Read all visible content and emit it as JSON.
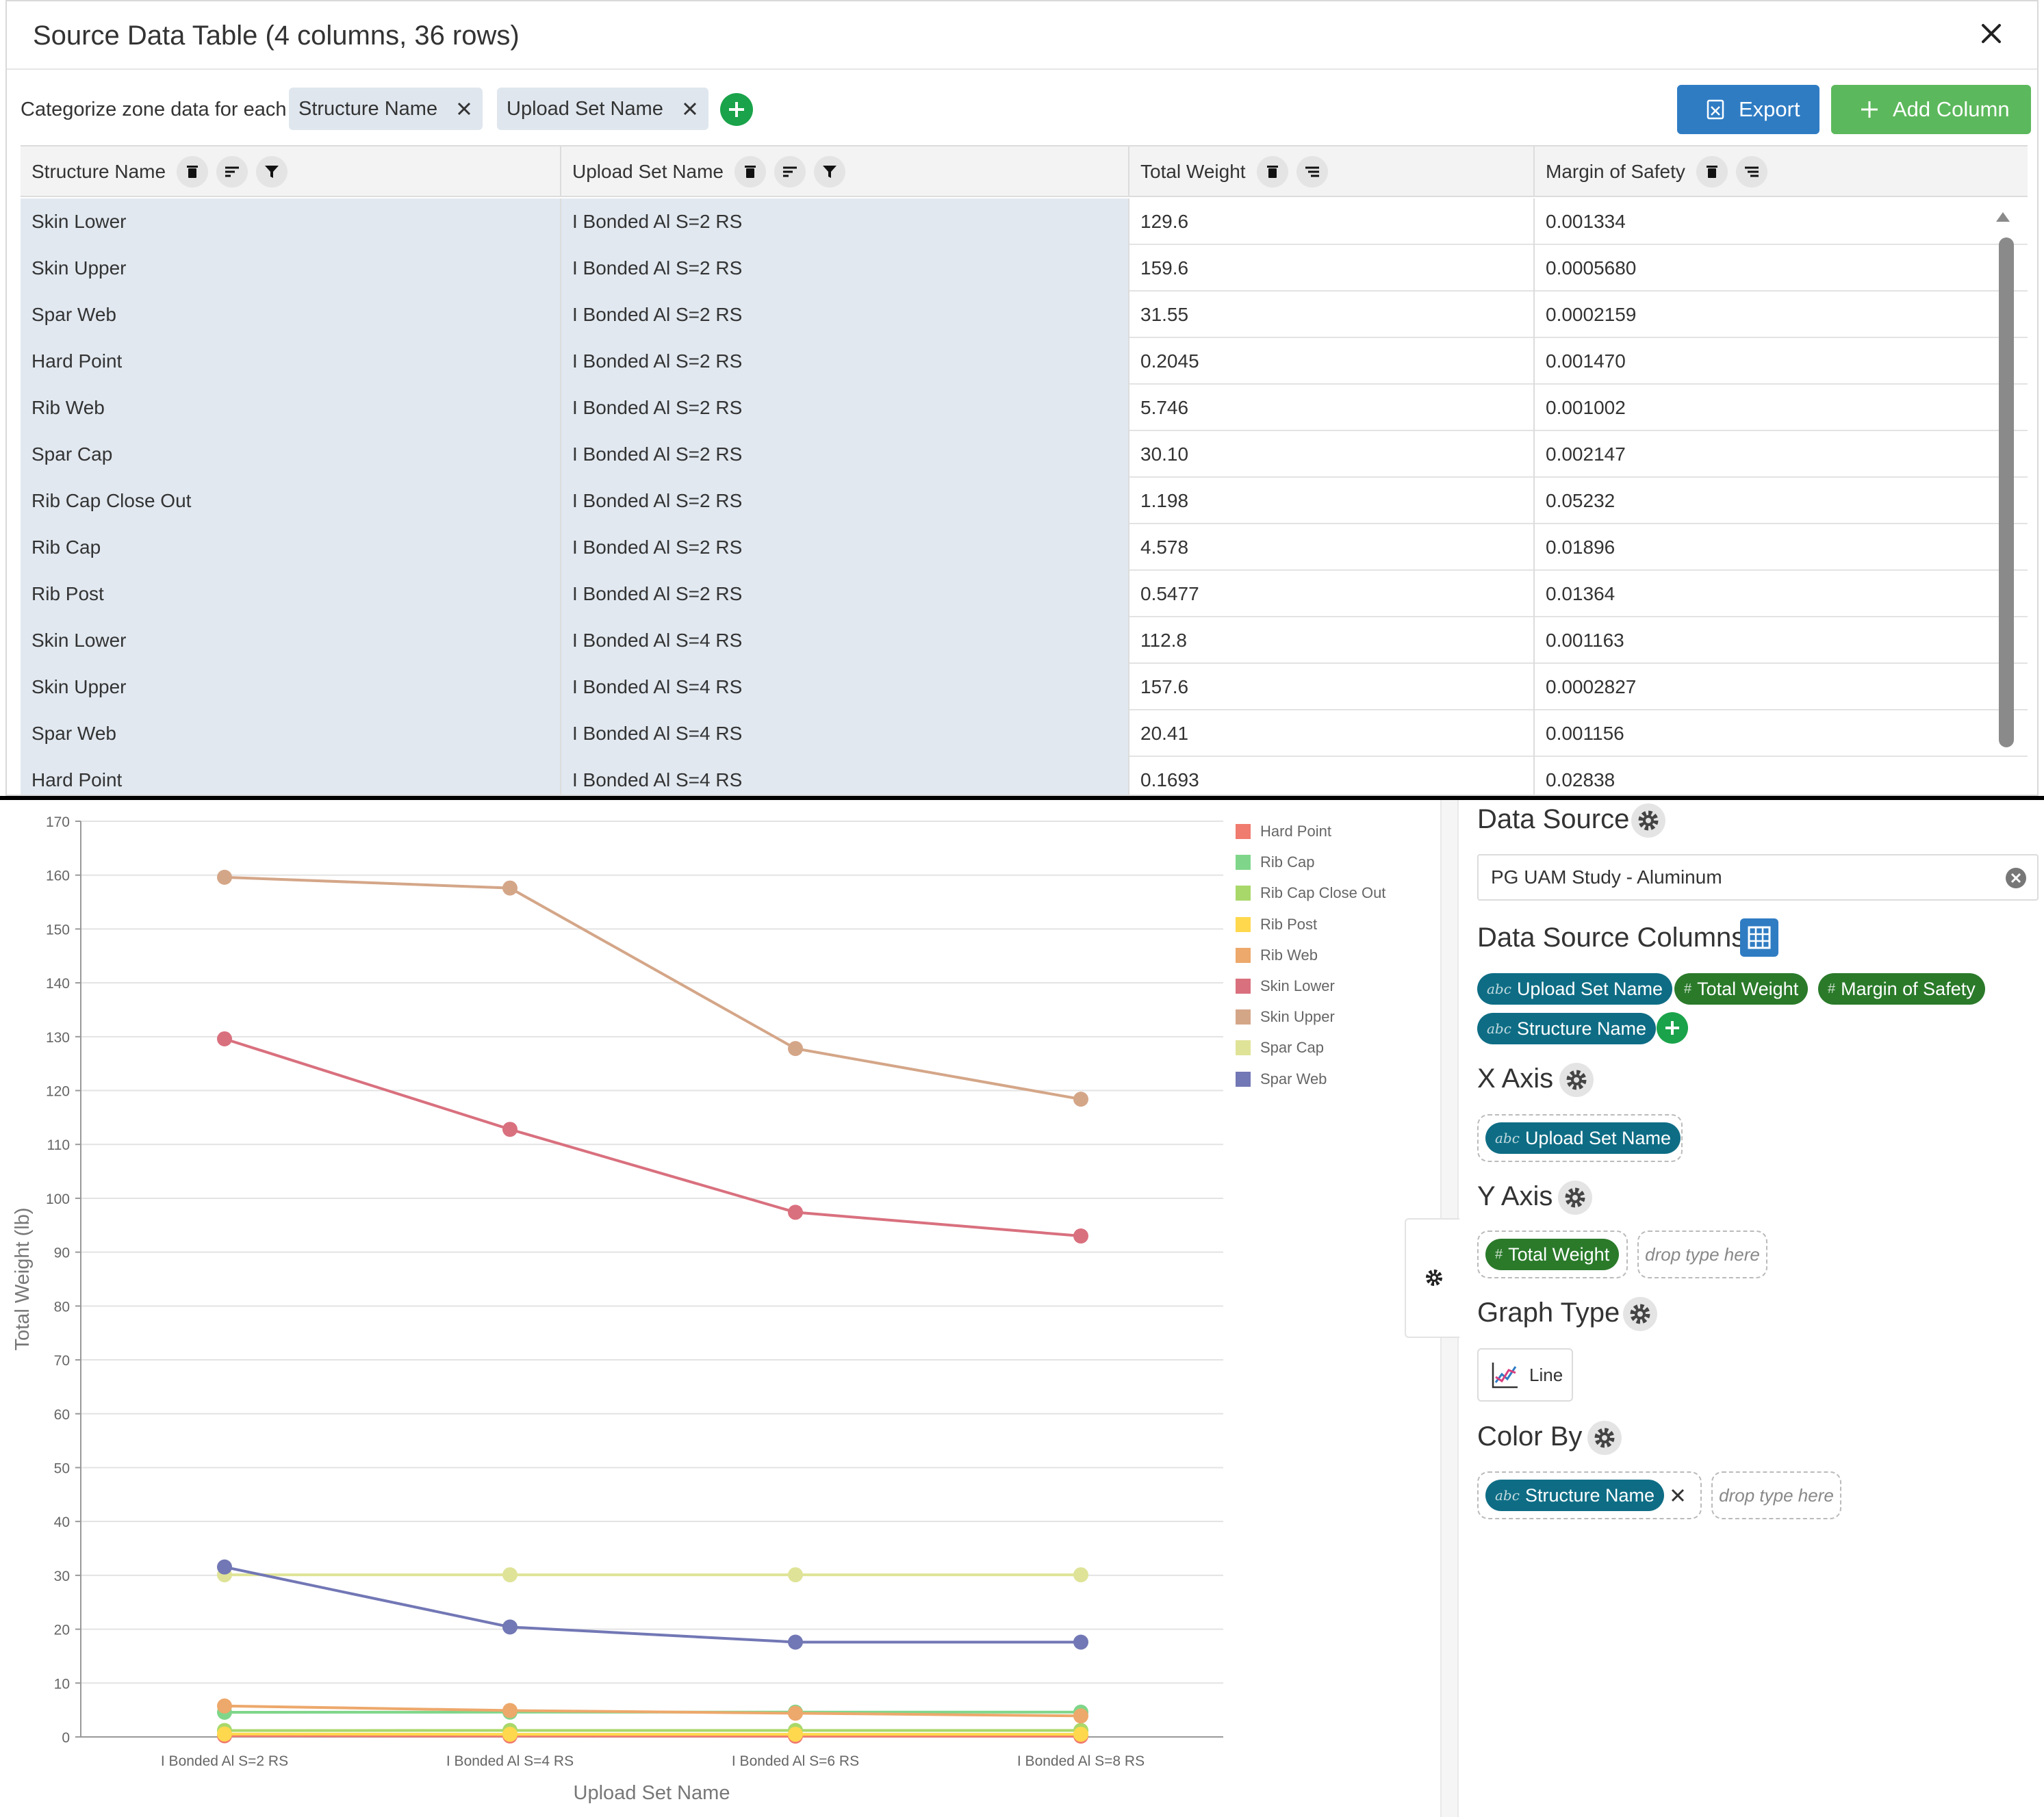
{
  "dialog": {
    "title": "Source Data Table (4 columns, 36 rows)",
    "categorize_label": "Categorize zone data for each",
    "chips": [
      "Structure Name",
      "Upload Set Name"
    ],
    "export_label": "Export",
    "add_column_label": "Add Column"
  },
  "table": {
    "headers": [
      "Structure Name",
      "Upload Set Name",
      "Total Weight",
      "Margin of Safety"
    ],
    "rows": [
      [
        "Skin Lower",
        "I Bonded Al S=2 RS",
        "129.6",
        "0.001334"
      ],
      [
        "Skin Upper",
        "I Bonded Al S=2 RS",
        "159.6",
        "0.0005680"
      ],
      [
        "Spar Web",
        "I Bonded Al S=2 RS",
        "31.55",
        "0.0002159"
      ],
      [
        "Hard Point",
        "I Bonded Al S=2 RS",
        "0.2045",
        "0.001470"
      ],
      [
        "Rib Web",
        "I Bonded Al S=2 RS",
        "5.746",
        "0.001002"
      ],
      [
        "Spar Cap",
        "I Bonded Al S=2 RS",
        "30.10",
        "0.002147"
      ],
      [
        "Rib Cap Close Out",
        "I Bonded Al S=2 RS",
        "1.198",
        "0.05232"
      ],
      [
        "Rib Cap",
        "I Bonded Al S=2 RS",
        "4.578",
        "0.01896"
      ],
      [
        "Rib Post",
        "I Bonded Al S=2 RS",
        "0.5477",
        "0.01364"
      ],
      [
        "Skin Lower",
        "I Bonded Al S=4 RS",
        "112.8",
        "0.001163"
      ],
      [
        "Skin Upper",
        "I Bonded Al S=4 RS",
        "157.6",
        "0.0002827"
      ],
      [
        "Spar Web",
        "I Bonded Al S=4 RS",
        "20.41",
        "0.001156"
      ],
      [
        "Hard Point",
        "I Bonded Al S=4 RS",
        "0.1693",
        "0.02838"
      ]
    ]
  },
  "chart_data": {
    "type": "line",
    "x": [
      "I Bonded Al S=2 RS",
      "I Bonded Al S=4 RS",
      "I Bonded Al S=6 RS",
      "I Bonded Al S=8 RS"
    ],
    "xlabel": "Upload Set Name",
    "ylabel": "Total Weight (lb)",
    "ylim": [
      0,
      170
    ],
    "yticks": [
      0,
      10,
      20,
      30,
      40,
      50,
      60,
      70,
      80,
      90,
      100,
      110,
      120,
      130,
      140,
      150,
      160,
      170
    ],
    "grid": true,
    "legend_position": "right",
    "series": [
      {
        "name": "Hard Point",
        "color": "#f07b6f",
        "values": [
          0.2045,
          0.1693,
          0.15,
          0.15
        ]
      },
      {
        "name": "Rib Cap",
        "color": "#7fd68a",
        "values": [
          4.578,
          4.6,
          4.6,
          4.6
        ]
      },
      {
        "name": "Rib Cap Close Out",
        "color": "#a9d86a",
        "values": [
          1.198,
          1.2,
          1.2,
          1.2
        ]
      },
      {
        "name": "Rib Post",
        "color": "#ffd84d",
        "values": [
          0.5477,
          0.5,
          0.5,
          0.5
        ]
      },
      {
        "name": "Rib Web",
        "color": "#eda86b",
        "values": [
          5.746,
          4.9,
          4.4,
          3.9
        ]
      },
      {
        "name": "Skin Lower",
        "color": "#d9707e",
        "values": [
          129.6,
          112.8,
          97.4,
          93.0
        ]
      },
      {
        "name": "Skin Upper",
        "color": "#d4a688",
        "values": [
          159.6,
          157.6,
          127.8,
          118.4
        ]
      },
      {
        "name": "Spar Cap",
        "color": "#dfe397",
        "values": [
          30.1,
          30.1,
          30.1,
          30.1
        ]
      },
      {
        "name": "Spar Web",
        "color": "#7277b5",
        "values": [
          31.55,
          20.41,
          17.6,
          17.6
        ]
      }
    ]
  },
  "panel": {
    "data_source_heading": "Data Source",
    "data_source_value": "PG UAM Study - Aluminum",
    "columns_heading": "Data Source Columns",
    "type_abc": "abc",
    "type_num": "#",
    "columns": [
      {
        "label": "Upload Set Name",
        "type": "abc"
      },
      {
        "label": "Total Weight",
        "type": "#"
      },
      {
        "label": "Margin of Safety",
        "type": "#"
      },
      {
        "label": "Structure Name",
        "type": "abc"
      }
    ],
    "x_axis_heading": "X Axis",
    "x_axis_value": "Upload Set Name",
    "y_axis_heading": "Y Axis",
    "y_axis_value": "Total Weight",
    "drop_placeholder": "drop type here",
    "graph_type_heading": "Graph Type",
    "graph_type_value": "Line",
    "color_by_heading": "Color By",
    "color_by_value": "Structure Name"
  }
}
